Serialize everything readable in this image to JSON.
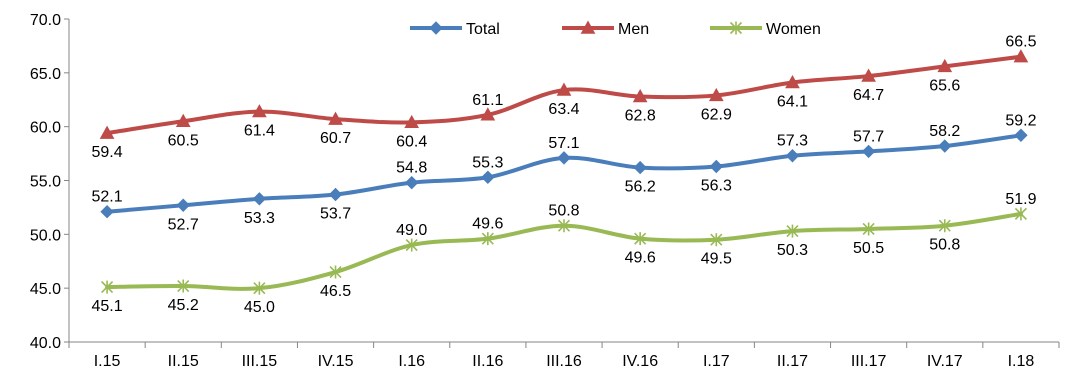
{
  "chart_data": {
    "type": "line",
    "categories": [
      "I.15",
      "II.15",
      "III.15",
      "IV.15",
      "I.16",
      "II.16",
      "III.16",
      "IV.16",
      "I.17",
      "II.17",
      "III.17",
      "IV.17",
      "I.18"
    ],
    "ylim": [
      40,
      70
    ],
    "yticks": [
      "40.0",
      "45.0",
      "50.0",
      "55.0",
      "60.0",
      "65.0",
      "70.0"
    ],
    "grid": false,
    "legend_position": "top-center",
    "series": [
      {
        "name": "Total",
        "color": "#4a7ebb",
        "marker": "diamond",
        "values": [
          52.1,
          52.7,
          53.3,
          53.7,
          54.8,
          55.3,
          57.1,
          56.2,
          56.3,
          57.3,
          57.7,
          58.2,
          59.2
        ],
        "labels": [
          "52.1",
          "52.7",
          "53.3",
          "53.7",
          "54.8",
          "55.3",
          "57.1",
          "56.2",
          "56.3",
          "57.3",
          "57.7",
          "58.2",
          "59.2"
        ]
      },
      {
        "name": "Men",
        "color": "#be4b48",
        "marker": "triangle",
        "values": [
          59.4,
          60.5,
          61.4,
          60.7,
          60.4,
          61.1,
          63.4,
          62.8,
          62.9,
          64.1,
          64.7,
          65.6,
          66.5
        ],
        "labels": [
          "59.4",
          "60.5",
          "61.4",
          "60.7",
          "60.4",
          "61.1",
          "63.4",
          "62.8",
          "62.9",
          "64.1",
          "64.7",
          "65.6",
          "66.5"
        ]
      },
      {
        "name": "Women",
        "color": "#98b954",
        "marker": "star",
        "values": [
          45.1,
          45.2,
          45.0,
          46.5,
          49.0,
          49.6,
          50.8,
          49.6,
          49.5,
          50.3,
          50.5,
          50.8,
          51.9
        ],
        "labels": [
          "45.1",
          "45.2",
          "45.0",
          "46.5",
          "49.0",
          "49.6",
          "50.8",
          "49.6",
          "49.5",
          "50.3",
          "50.5",
          "50.8",
          "51.9"
        ]
      }
    ]
  }
}
